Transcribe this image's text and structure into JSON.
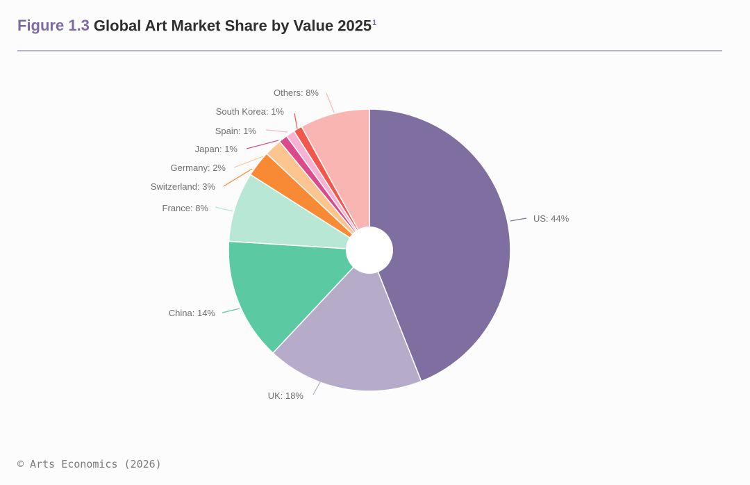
{
  "header": {
    "figure_label": "Figure 1.3",
    "title": "Global Art Market Share by Value 2025",
    "footnote_mark": "1"
  },
  "footer": {
    "credit": "© Arts Economics (2026)"
  },
  "chart_data": {
    "type": "pie",
    "title": "Global Art Market Share by Value 2025",
    "unit": "%",
    "slices": [
      {
        "name": "US",
        "value": 44,
        "label": "US: 44%",
        "color": "#7f6ea0"
      },
      {
        "name": "UK",
        "value": 18,
        "label": "UK: 18%",
        "color": "#b6acc9"
      },
      {
        "name": "China",
        "value": 14,
        "label": "China: 14%",
        "color": "#5bc9a1"
      },
      {
        "name": "France",
        "value": 8,
        "label": "France: 8%",
        "color": "#b8e7d5"
      },
      {
        "name": "Switzerland",
        "value": 3,
        "label": "Switzerland: 3%",
        "color": "#f88a36"
      },
      {
        "name": "Germany",
        "value": 2,
        "label": "Germany: 2%",
        "color": "#fcc48e"
      },
      {
        "name": "Japan",
        "value": 1,
        "label": "Japan: 1%",
        "color": "#db4a8a"
      },
      {
        "name": "Spain",
        "value": 1,
        "label": "Spain: 1%",
        "color": "#f7b2d3"
      },
      {
        "name": "South Korea",
        "value": 1,
        "label": "South Korea: 1%",
        "color": "#f2574b"
      },
      {
        "name": "Others",
        "value": 8,
        "label": "Others: 8%",
        "color": "#f9b5b1"
      }
    ]
  }
}
